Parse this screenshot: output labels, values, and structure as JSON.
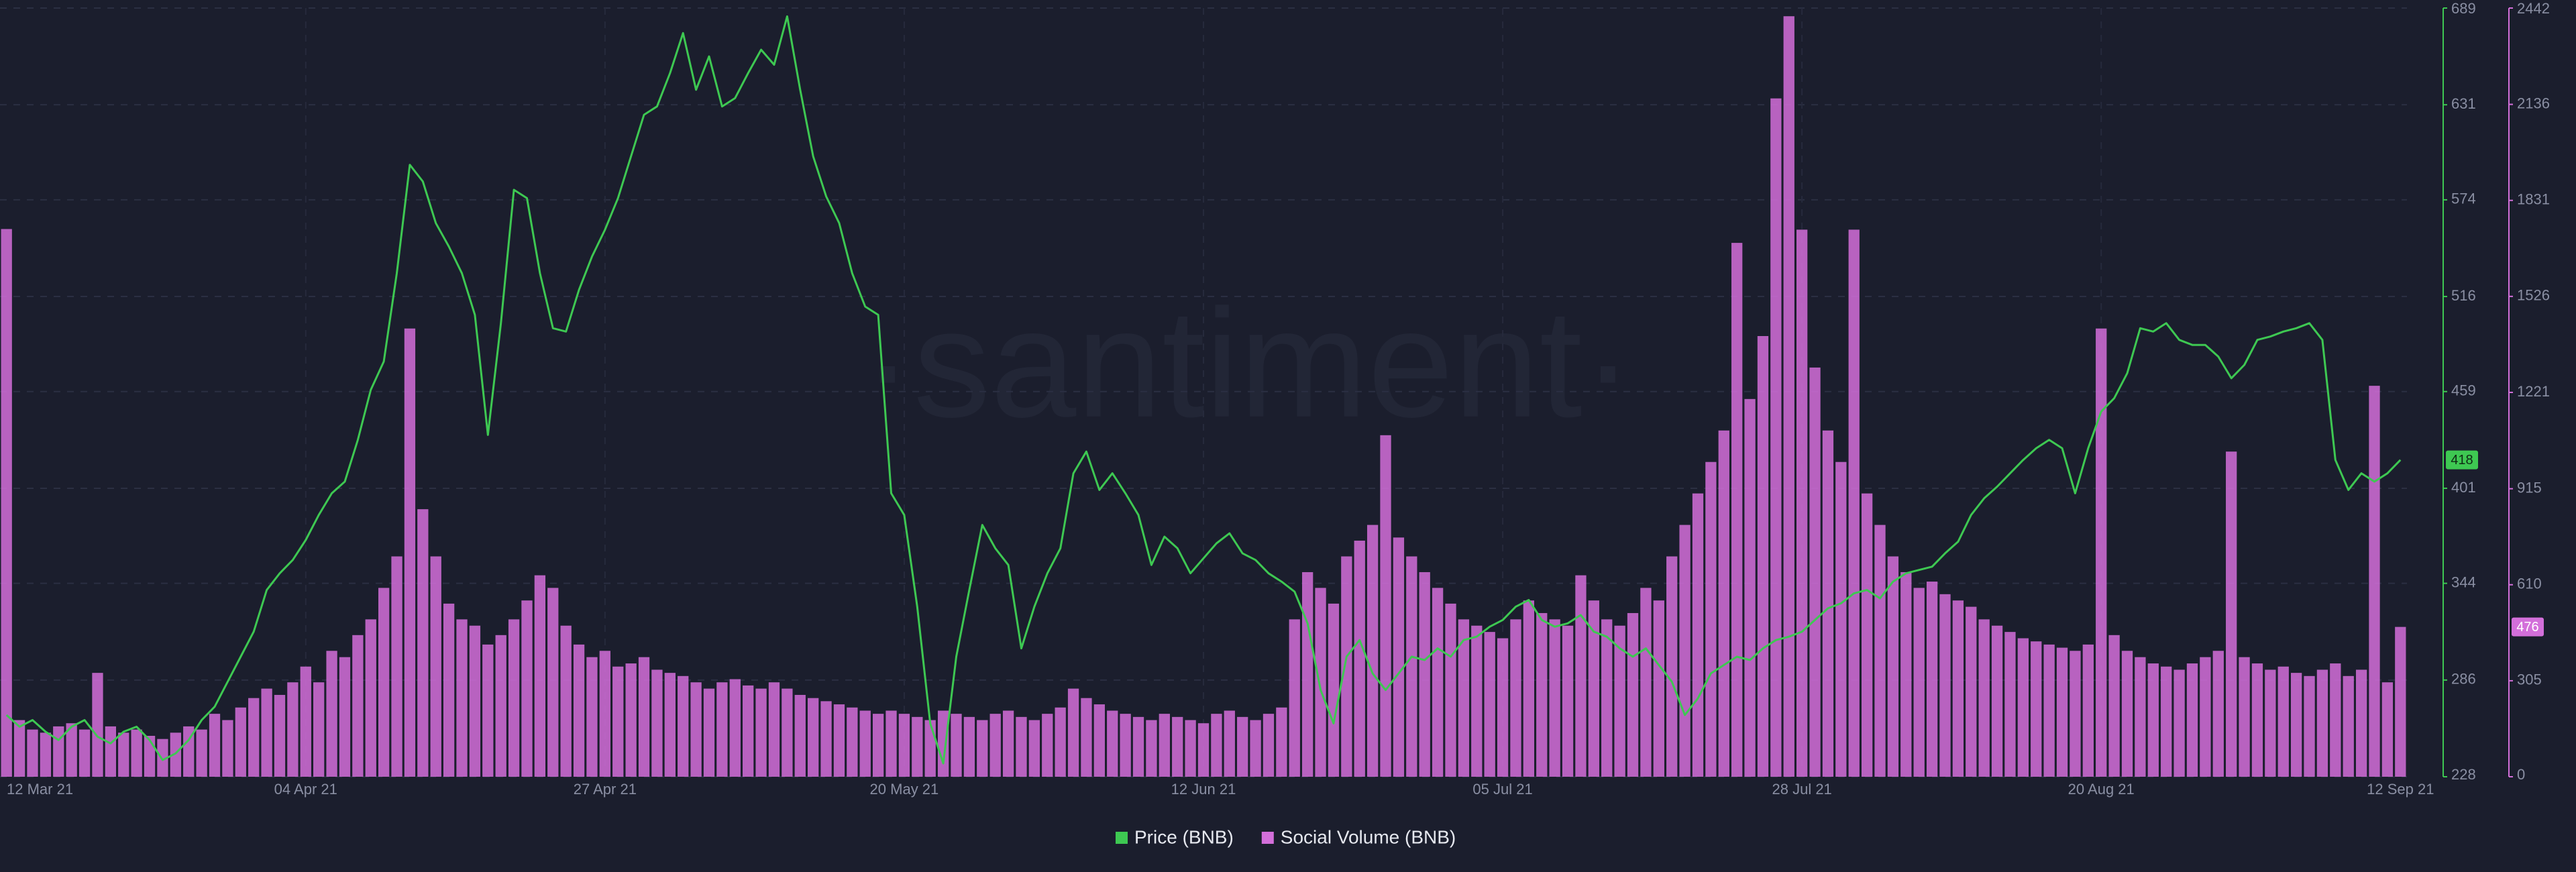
{
  "chart_data": {
    "type": "line",
    "watermark": "·santiment·",
    "categories": [
      "12 Mar 21",
      null,
      null,
      null,
      null,
      null,
      null,
      null,
      null,
      null,
      null,
      null,
      null,
      null,
      null,
      null,
      null,
      null,
      null,
      null,
      null,
      null,
      null,
      "04 Apr 21",
      null,
      null,
      null,
      null,
      null,
      null,
      null,
      null,
      null,
      null,
      null,
      null,
      null,
      null,
      null,
      null,
      null,
      null,
      null,
      null,
      null,
      null,
      "27 Apr 21",
      null,
      null,
      null,
      null,
      null,
      null,
      null,
      null,
      null,
      null,
      null,
      null,
      null,
      null,
      null,
      null,
      null,
      null,
      null,
      null,
      null,
      null,
      "20 May 21",
      null,
      null,
      null,
      null,
      null,
      null,
      null,
      null,
      null,
      null,
      null,
      null,
      null,
      null,
      null,
      null,
      null,
      null,
      null,
      null,
      null,
      null,
      "12 Jun 21",
      null,
      null,
      null,
      null,
      null,
      null,
      null,
      null,
      null,
      null,
      null,
      null,
      null,
      null,
      null,
      null,
      null,
      null,
      null,
      null,
      null,
      null,
      "05 Jul 21",
      null,
      null,
      null,
      null,
      null,
      null,
      null,
      null,
      null,
      null,
      null,
      null,
      null,
      null,
      null,
      null,
      null,
      null,
      null,
      null,
      null,
      null,
      "28 Jul 21",
      null,
      null,
      null,
      null,
      null,
      null,
      null,
      null,
      null,
      null,
      null,
      null,
      null,
      null,
      null,
      null,
      null,
      null,
      null,
      null,
      null,
      null,
      "20 Aug 21",
      null,
      null,
      null,
      null,
      null,
      null,
      null,
      null,
      null,
      null,
      null,
      null,
      null,
      null,
      null,
      null,
      null,
      null,
      null,
      null,
      null,
      null,
      "12 Sep 21"
    ],
    "series": [
      {
        "name": "Price (BNB)",
        "type": "line",
        "axis": "y",
        "color": "#3ec852",
        "values": [
          265,
          258,
          262,
          255,
          250,
          258,
          262,
          252,
          248,
          255,
          258,
          250,
          238,
          242,
          250,
          262,
          270,
          285,
          300,
          315,
          340,
          350,
          358,
          370,
          385,
          398,
          405,
          430,
          460,
          477,
          530,
          595,
          585,
          560,
          546,
          530,
          505,
          433,
          500,
          580,
          575,
          530,
          497,
          495,
          520,
          540,
          556,
          575,
          600,
          625,
          630,
          650,
          674,
          640,
          660,
          630,
          635,
          650,
          664,
          655,
          684,
          640,
          600,
          576,
          560,
          530,
          510,
          505,
          398,
          385,
          330,
          260,
          236,
          300,
          340,
          379,
          365,
          355,
          305,
          330,
          350,
          365,
          410,
          423,
          400,
          410,
          398,
          385,
          355,
          372,
          365,
          350,
          359,
          368,
          374,
          362,
          358,
          350,
          345,
          339,
          320,
          280,
          260,
          300,
          310,
          290,
          280,
          290,
          300,
          298,
          305,
          300,
          310,
          312,
          318,
          322,
          330,
          334,
          322,
          318,
          320,
          325,
          315,
          312,
          305,
          300,
          305,
          295,
          285,
          265,
          275,
          290,
          295,
          300,
          298,
          305,
          310,
          312,
          315,
          322,
          329,
          332,
          338,
          340,
          335,
          345,
          350,
          352,
          354,
          362,
          369,
          385,
          395,
          402,
          410,
          418,
          425,
          430,
          425,
          398,
          425,
          447,
          455,
          470,
          497,
          495,
          500,
          490,
          487,
          487,
          480,
          467,
          475,
          490,
          492,
          495,
          497,
          500,
          490,
          418,
          400,
          410,
          405,
          410,
          418
        ]
      },
      {
        "name": "Social Volume (BNB)",
        "type": "bar",
        "axis": "y2",
        "color": "#d36fda",
        "values": [
          1740,
          180,
          150,
          140,
          160,
          170,
          150,
          330,
          160,
          140,
          150,
          130,
          120,
          140,
          160,
          150,
          200,
          180,
          220,
          250,
          280,
          260,
          300,
          350,
          300,
          400,
          380,
          450,
          500,
          600,
          700,
          1424,
          850,
          700,
          550,
          500,
          480,
          420,
          450,
          500,
          560,
          640,
          600,
          480,
          420,
          380,
          400,
          350,
          360,
          380,
          340,
          330,
          320,
          300,
          280,
          300,
          310,
          290,
          280,
          300,
          280,
          260,
          250,
          240,
          230,
          220,
          210,
          200,
          210,
          200,
          190,
          180,
          210,
          200,
          190,
          180,
          200,
          210,
          190,
          180,
          200,
          220,
          280,
          250,
          230,
          210,
          200,
          190,
          180,
          200,
          190,
          180,
          170,
          200,
          210,
          190,
          180,
          200,
          220,
          500,
          650,
          600,
          550,
          700,
          750,
          800,
          1085,
          760,
          700,
          650,
          600,
          550,
          500,
          480,
          460,
          440,
          500,
          560,
          520,
          500,
          480,
          640,
          560,
          500,
          480,
          520,
          600,
          560,
          700,
          800,
          900,
          1000,
          1100,
          1696,
          1200,
          1400,
          2155,
          2416,
          1738,
          1300,
          1100,
          1000,
          1738,
          900,
          800,
          700,
          650,
          600,
          620,
          580,
          560,
          540,
          500,
          480,
          460,
          440,
          430,
          420,
          410,
          400,
          420,
          1424,
          450,
          400,
          380,
          360,
          350,
          340,
          360,
          380,
          400,
          1033,
          380,
          360,
          340,
          350,
          330,
          320,
          340,
          360,
          320,
          340,
          1242,
          300,
          476
        ]
      }
    ],
    "ylim": [
      228,
      689
    ],
    "yticks": [
      228,
      286,
      344,
      401,
      459,
      516,
      574,
      631,
      689
    ],
    "y2lim": [
      0,
      2442
    ],
    "y2ticks": [
      0,
      305,
      610,
      915,
      1221,
      1526,
      1831,
      2136,
      2442
    ],
    "grid": true
  }
}
